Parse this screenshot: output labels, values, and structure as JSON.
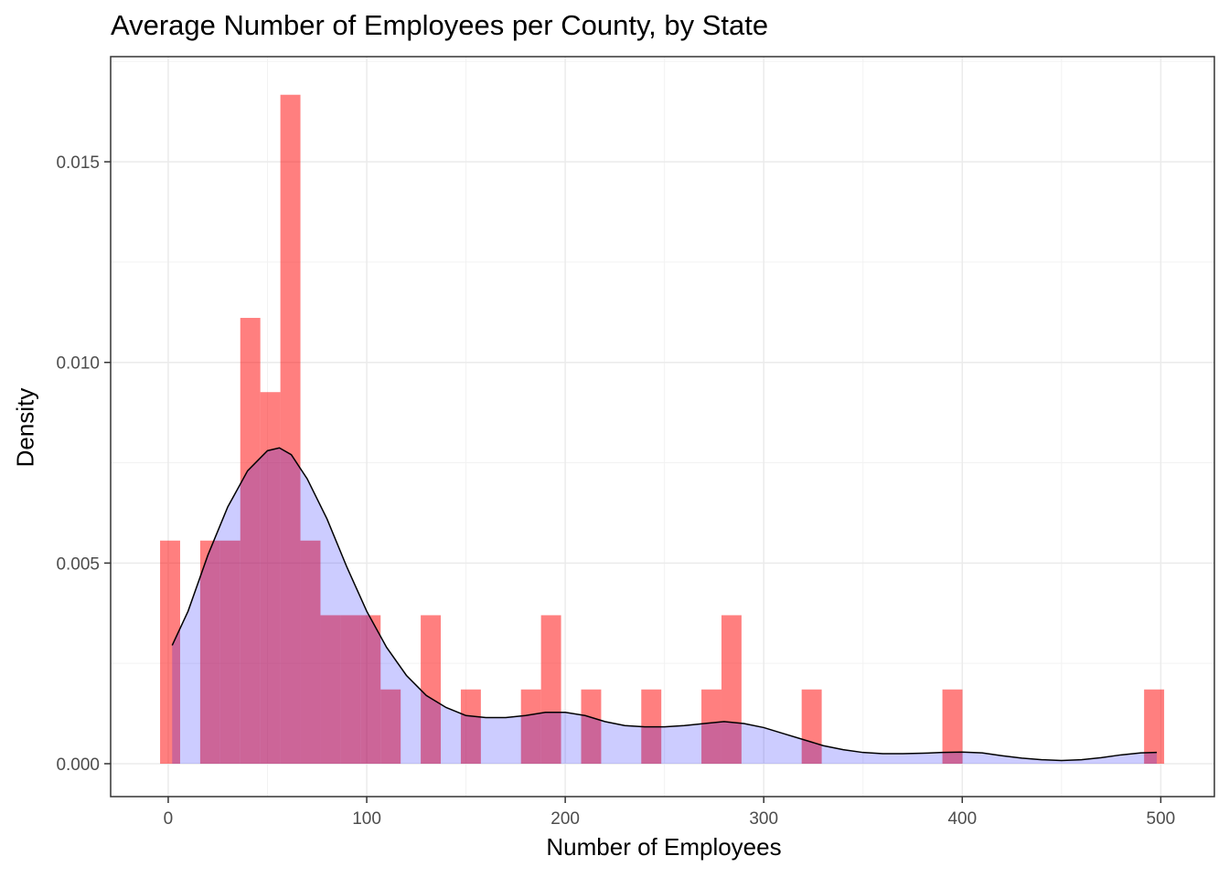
{
  "chart_data": {
    "type": "histogram",
    "title": "Average Number of Employees per County, by State",
    "xlabel": "Number of Employees",
    "ylabel": "Density",
    "xlim": [
      -29,
      527
    ],
    "ylim": [
      -0.00082,
      0.01762
    ],
    "x_ticks": [
      0,
      100,
      200,
      300,
      400,
      500
    ],
    "x_tick_labels": [
      "0",
      "100",
      "200",
      "300",
      "400",
      "500"
    ],
    "y_ticks": [
      0.0,
      0.005,
      0.01,
      0.015
    ],
    "y_tick_labels": [
      "0.000",
      "0.005",
      "0.010",
      "0.015"
    ],
    "grid": true,
    "histogram": {
      "name": "",
      "color": "#FF0000",
      "opacity": 0.5,
      "bin_width": 10.1,
      "bins": [
        {
          "x0": -4.1,
          "x1": 6.0,
          "density": 0.00556
        },
        {
          "x0": 6.0,
          "x1": 16.1,
          "density": 0.0
        },
        {
          "x0": 16.1,
          "x1": 26.2,
          "density": 0.00556
        },
        {
          "x0": 26.2,
          "x1": 36.3,
          "density": 0.00556
        },
        {
          "x0": 36.3,
          "x1": 46.4,
          "density": 0.01111
        },
        {
          "x0": 46.4,
          "x1": 56.5,
          "density": 0.00926
        },
        {
          "x0": 56.5,
          "x1": 66.6,
          "density": 0.01667
        },
        {
          "x0": 66.6,
          "x1": 76.7,
          "density": 0.00556
        },
        {
          "x0": 76.7,
          "x1": 86.8,
          "density": 0.0037
        },
        {
          "x0": 86.8,
          "x1": 96.9,
          "density": 0.0037
        },
        {
          "x0": 96.9,
          "x1": 107.0,
          "density": 0.0037
        },
        {
          "x0": 107.0,
          "x1": 117.1,
          "density": 0.00185
        },
        {
          "x0": 117.1,
          "x1": 127.2,
          "density": 0.0
        },
        {
          "x0": 127.2,
          "x1": 137.3,
          "density": 0.0037
        },
        {
          "x0": 137.3,
          "x1": 147.4,
          "density": 0.0
        },
        {
          "x0": 147.4,
          "x1": 157.5,
          "density": 0.00185
        },
        {
          "x0": 157.5,
          "x1": 167.6,
          "density": 0.0
        },
        {
          "x0": 167.6,
          "x1": 177.7,
          "density": 0.0
        },
        {
          "x0": 177.7,
          "x1": 187.8,
          "density": 0.00185
        },
        {
          "x0": 187.8,
          "x1": 197.9,
          "density": 0.0037
        },
        {
          "x0": 197.9,
          "x1": 208.0,
          "density": 0.0
        },
        {
          "x0": 208.0,
          "x1": 218.1,
          "density": 0.00185
        },
        {
          "x0": 218.1,
          "x1": 228.2,
          "density": 0.0
        },
        {
          "x0": 228.2,
          "x1": 238.3,
          "density": 0.0
        },
        {
          "x0": 238.3,
          "x1": 248.4,
          "density": 0.00185
        },
        {
          "x0": 248.4,
          "x1": 258.5,
          "density": 0.0
        },
        {
          "x0": 258.5,
          "x1": 268.6,
          "density": 0.0
        },
        {
          "x0": 268.6,
          "x1": 278.7,
          "density": 0.00185
        },
        {
          "x0": 278.7,
          "x1": 288.8,
          "density": 0.0037
        },
        {
          "x0": 288.8,
          "x1": 298.9,
          "density": 0.0
        },
        {
          "x0": 298.9,
          "x1": 309.0,
          "density": 0.0
        },
        {
          "x0": 309.0,
          "x1": 319.1,
          "density": 0.0
        },
        {
          "x0": 319.1,
          "x1": 329.2,
          "density": 0.00185
        },
        {
          "x0": 390.0,
          "x1": 400.1,
          "density": 0.00185
        },
        {
          "x0": 491.6,
          "x1": 501.7,
          "density": 0.00185
        }
      ]
    },
    "density_curve": {
      "name": "",
      "fill_color": "#0000FF",
      "fill_opacity": 0.2,
      "line_color": "#000000",
      "points": [
        [
          2,
          0.00295
        ],
        [
          10,
          0.0038
        ],
        [
          20,
          0.0052
        ],
        [
          30,
          0.0064
        ],
        [
          40,
          0.0073
        ],
        [
          50,
          0.0078
        ],
        [
          56,
          0.00787
        ],
        [
          62,
          0.0077
        ],
        [
          70,
          0.0071
        ],
        [
          80,
          0.0061
        ],
        [
          90,
          0.0049
        ],
        [
          100,
          0.0038
        ],
        [
          110,
          0.0029
        ],
        [
          120,
          0.0022
        ],
        [
          130,
          0.0017
        ],
        [
          140,
          0.0014
        ],
        [
          150,
          0.0012
        ],
        [
          160,
          0.00115
        ],
        [
          170,
          0.00115
        ],
        [
          180,
          0.0012
        ],
        [
          190,
          0.00128
        ],
        [
          200,
          0.00128
        ],
        [
          210,
          0.0012
        ],
        [
          220,
          0.00105
        ],
        [
          230,
          0.00095
        ],
        [
          240,
          0.00092
        ],
        [
          250,
          0.00092
        ],
        [
          260,
          0.00095
        ],
        [
          270,
          0.001
        ],
        [
          280,
          0.00105
        ],
        [
          290,
          0.001
        ],
        [
          300,
          0.0009
        ],
        [
          310,
          0.00075
        ],
        [
          320,
          0.0006
        ],
        [
          330,
          0.00045
        ],
        [
          340,
          0.00035
        ],
        [
          350,
          0.00028
        ],
        [
          360,
          0.00025
        ],
        [
          370,
          0.00025
        ],
        [
          380,
          0.00026
        ],
        [
          390,
          0.00028
        ],
        [
          400,
          0.00029
        ],
        [
          410,
          0.00027
        ],
        [
          420,
          0.0002
        ],
        [
          430,
          0.00014
        ],
        [
          440,
          0.0001
        ],
        [
          450,
          8e-05
        ],
        [
          460,
          0.0001
        ],
        [
          470,
          0.00015
        ],
        [
          480,
          0.00022
        ],
        [
          490,
          0.00027
        ],
        [
          498,
          0.00028
        ]
      ]
    }
  }
}
